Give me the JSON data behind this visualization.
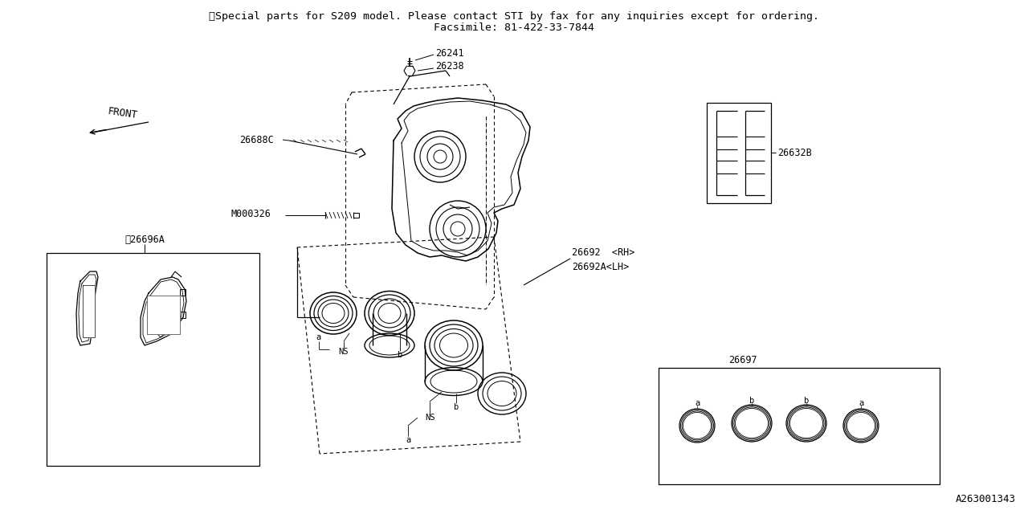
{
  "bg_color": "#ffffff",
  "line_color": "#000000",
  "title_note_line1": "※Special parts for S209 model. Please contact STI by fax for any inquiries except for ordering.",
  "title_note_line2": "Facsimile: 81-422-33-7844",
  "diagram_id": "A263001343",
  "font_size_note": 9.5,
  "font_size_label": 8.5,
  "font_size_small": 7.5
}
